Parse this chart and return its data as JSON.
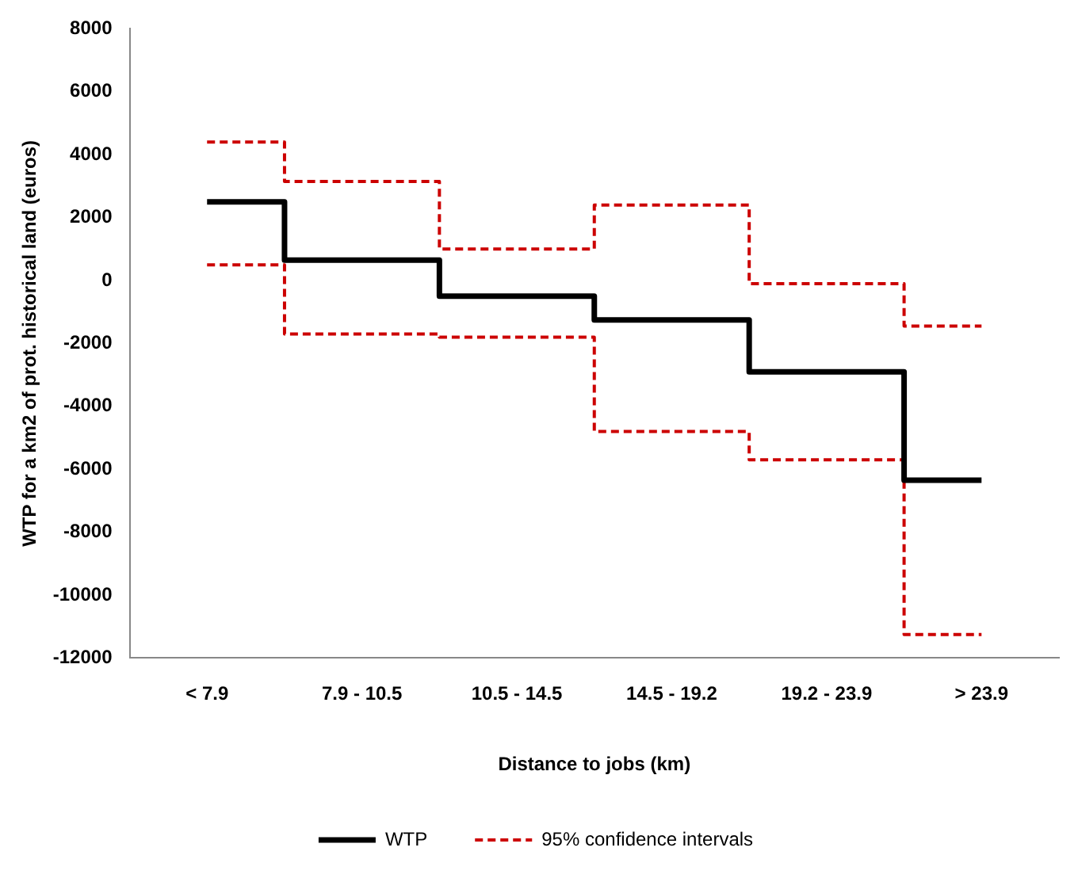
{
  "chart_data": {
    "type": "step",
    "xlabel": "Distance to jobs (km)",
    "ylabel": "WTP for a km2 of prot. historical land (euros)",
    "categories": [
      "< 7.9",
      "7.9 - 10.5",
      "10.5 - 14.5",
      "14.5 - 19.2",
      "19.2 - 23.9",
      "> 23.9"
    ],
    "series": [
      {
        "name": "WTP",
        "color": "#000000",
        "line_style": "solid",
        "values": [
          2500,
          650,
          -500,
          -1250,
          -2900,
          -6350
        ]
      },
      {
        "name": "95% confidence intervals",
        "color": "#cc0000",
        "line_style": "dashed",
        "values": [
          4400,
          3150,
          1000,
          2400,
          -100,
          -1450
        ]
      },
      {
        "color": "#cc0000",
        "line_style": "dashed",
        "values": [
          500,
          -1700,
          -1800,
          -4800,
          -5700,
          -11250
        ]
      }
    ],
    "ylim": [
      -12000,
      8000
    ],
    "yticks": [
      -12000,
      -10000,
      -8000,
      -6000,
      -4000,
      -2000,
      0,
      2000,
      4000,
      6000,
      8000
    ],
    "grid": false,
    "legend": "bottom"
  }
}
